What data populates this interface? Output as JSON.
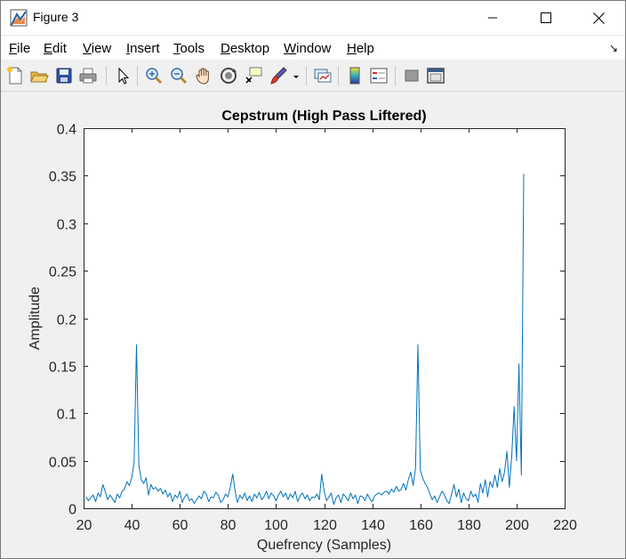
{
  "window": {
    "title": "Figure 3"
  },
  "menu": {
    "items": [
      {
        "label": "File",
        "mnemonic": "F",
        "rest": "ile"
      },
      {
        "label": "Edit",
        "mnemonic": "E",
        "rest": "dit"
      },
      {
        "label": "View",
        "mnemonic": "V",
        "rest": "iew"
      },
      {
        "label": "Insert",
        "mnemonic": "I",
        "rest": "nsert"
      },
      {
        "label": "Tools",
        "mnemonic": "T",
        "rest": "ools"
      },
      {
        "label": "Desktop",
        "mnemonic": "D",
        "rest": "esktop"
      },
      {
        "label": "Window",
        "mnemonic": "W",
        "rest": "indow"
      },
      {
        "label": "Help",
        "mnemonic": "H",
        "rest": "elp"
      }
    ]
  },
  "toolbar": {
    "icons": [
      "new-figure-icon",
      "open-file-icon",
      "save-icon",
      "print-icon",
      "select-arrow-icon",
      "zoom-in-icon",
      "zoom-out-icon",
      "pan-hand-icon",
      "rotate-3d-icon",
      "data-cursor-icon",
      "brush-icon",
      "brush-dropdown-icon",
      "link-plot-icon",
      "colorbar-icon",
      "legend-icon",
      "hide-plot-tools-icon",
      "show-plot-tools-icon"
    ]
  },
  "colors": {
    "line": "#0072bd",
    "axes_bg": "#ffffff",
    "figure_bg": "#f0f0f0"
  },
  "chart_data": {
    "type": "line",
    "title": "Cepstrum (High Pass Liftered)",
    "xlabel": "Quefrency (Samples)",
    "ylabel": "Amplitude",
    "xlim": [
      20,
      220
    ],
    "ylim": [
      0,
      0.4
    ],
    "xticks": [
      20,
      40,
      60,
      80,
      100,
      120,
      140,
      160,
      180,
      200,
      220
    ],
    "yticks": [
      0,
      0.05,
      0.1,
      0.15,
      0.2,
      0.25,
      0.3,
      0.35,
      0.4
    ],
    "xtick_labels": [
      "20",
      "40",
      "60",
      "80",
      "100",
      "120",
      "140",
      "160",
      "180",
      "200",
      "220"
    ],
    "ytick_labels": [
      "0",
      "0.05",
      "0.1",
      "0.15",
      "0.2",
      "0.25",
      "0.3",
      "0.35",
      "0.4"
    ],
    "grid": false,
    "series": [
      {
        "x_start": 21,
        "values": [
          0.012,
          0.008,
          0.011,
          0.014,
          0.007,
          0.016,
          0.012,
          0.025,
          0.018,
          0.009,
          0.014,
          0.01,
          0.006,
          0.015,
          0.011,
          0.018,
          0.02,
          0.028,
          0.024,
          0.032,
          0.048,
          0.172,
          0.045,
          0.03,
          0.026,
          0.032,
          0.014,
          0.025,
          0.02,
          0.022,
          0.018,
          0.021,
          0.015,
          0.019,
          0.012,
          0.016,
          0.007,
          0.014,
          0.011,
          0.018,
          0.006,
          0.012,
          0.015,
          0.008,
          0.01,
          0.005,
          0.009,
          0.013,
          0.01,
          0.018,
          0.015,
          0.007,
          0.012,
          0.011,
          0.017,
          0.014,
          0.006,
          0.009,
          0.015,
          0.012,
          0.022,
          0.036,
          0.018,
          0.006,
          0.014,
          0.01,
          0.016,
          0.008,
          0.013,
          0.007,
          0.015,
          0.011,
          0.017,
          0.009,
          0.012,
          0.018,
          0.01,
          0.016,
          0.013,
          0.008,
          0.014,
          0.018,
          0.012,
          0.016,
          0.009,
          0.015,
          0.011,
          0.018,
          0.007,
          0.013,
          0.016,
          0.01,
          0.014,
          0.008,
          0.012,
          0.011,
          0.015,
          0.009,
          0.036,
          0.018,
          0.008,
          0.012,
          0.016,
          0.004,
          0.011,
          0.014,
          0.006,
          0.015,
          0.012,
          0.008,
          0.016,
          0.01,
          0.014,
          0.005,
          0.013,
          0.012,
          0.008,
          0.015,
          0.01,
          0.007,
          0.013,
          0.015,
          0.016,
          0.014,
          0.017,
          0.018,
          0.015,
          0.02,
          0.017,
          0.023,
          0.018,
          0.02,
          0.026,
          0.019,
          0.03,
          0.038,
          0.024,
          0.042,
          0.172,
          0.04,
          0.032,
          0.026,
          0.022,
          0.015,
          0.009,
          0.013,
          0.006,
          0.012,
          0.018,
          0.014,
          0.008,
          0.005,
          0.015,
          0.025,
          0.012,
          0.02,
          0.006,
          0.016,
          0.01,
          0.008,
          0.018,
          0.012,
          0.015,
          0.006,
          0.026,
          0.016,
          0.03,
          0.012,
          0.028,
          0.022,
          0.035,
          0.022,
          0.042,
          0.028,
          0.038,
          0.06,
          0.022,
          0.055,
          0.107,
          0.05,
          0.152,
          0.035,
          0.352
        ]
      }
    ]
  }
}
